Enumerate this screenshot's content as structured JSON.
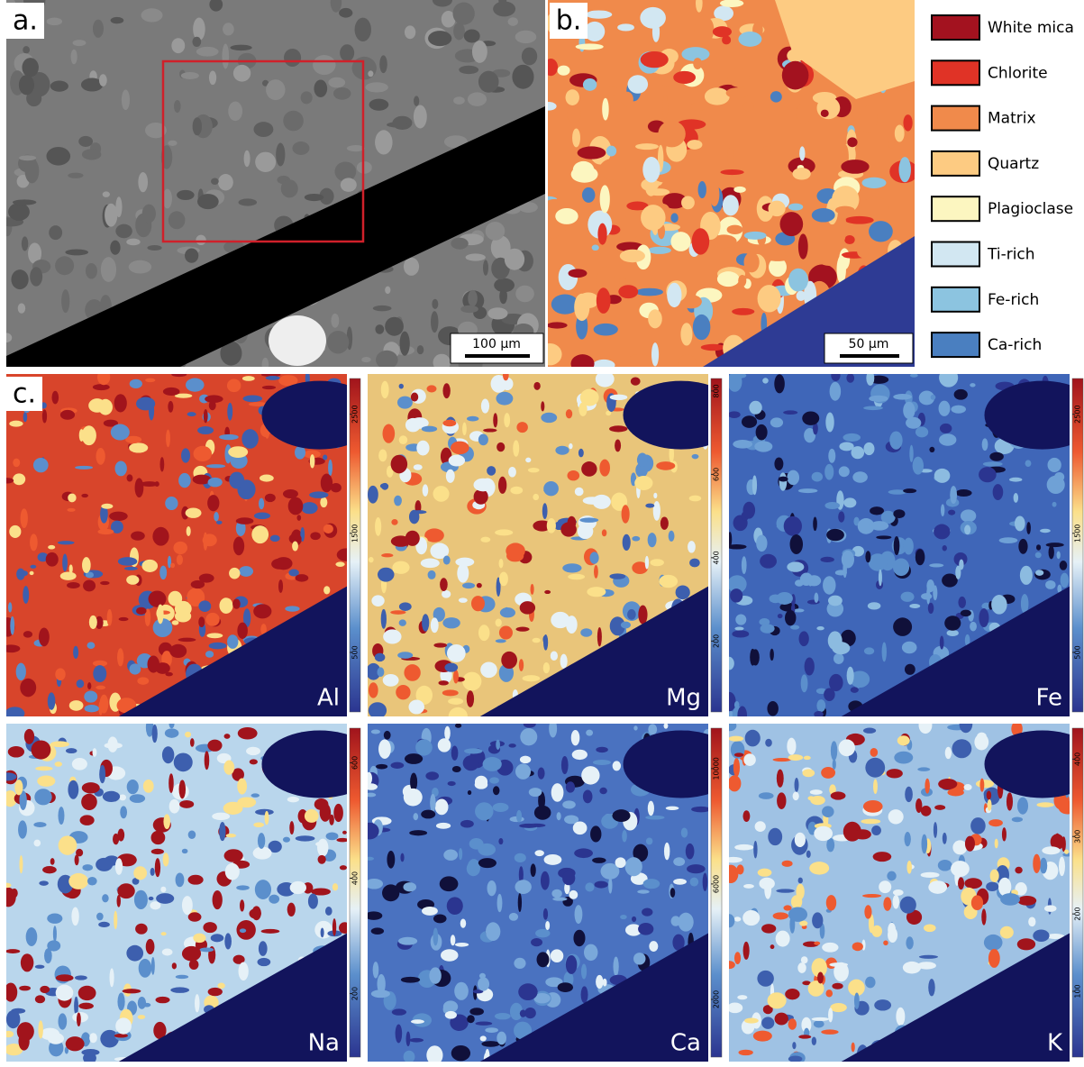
{
  "panel_a": {
    "label": "a.",
    "scale_bar": "100 µm"
  },
  "panel_b": {
    "label": "b.",
    "scale_bar": "50 µm",
    "legend": [
      {
        "name": "White mica",
        "color": "#a3121f"
      },
      {
        "name": "Chlorite",
        "color": "#e03326"
      },
      {
        "name": "Matrix",
        "color": "#f08a4b"
      },
      {
        "name": "Quartz",
        "color": "#fdcb82"
      },
      {
        "name": "Plagioclase",
        "color": "#fcf6c0"
      },
      {
        "name": "Ti-rich",
        "color": "#d2e7f2"
      },
      {
        "name": "Fe-rich",
        "color": "#8cc4e0"
      },
      {
        "name": "Ca-rich",
        "color": "#4a7fc0"
      }
    ]
  },
  "panel_c": {
    "label": "c.",
    "maps": [
      {
        "element": "Al",
        "clim": [
          0,
          2800
        ],
        "ticks": [
          500,
          1500,
          2500
        ]
      },
      {
        "element": "Mg",
        "clim": [
          30,
          830
        ],
        "ticks": [
          200,
          400,
          600,
          800
        ]
      },
      {
        "element": "Fe",
        "clim": [
          0,
          2800
        ],
        "ticks": [
          500,
          1500,
          2500
        ]
      },
      {
        "element": "Na",
        "clim": [
          90,
          660
        ],
        "ticks": [
          200,
          400,
          600
        ]
      },
      {
        "element": "Ca",
        "clim": [
          0,
          11400
        ],
        "ticks": [
          2000,
          6000,
          10000
        ]
      },
      {
        "element": "K",
        "clim": [
          15,
          440
        ],
        "ticks": [
          100,
          200,
          300,
          400
        ]
      }
    ]
  }
}
